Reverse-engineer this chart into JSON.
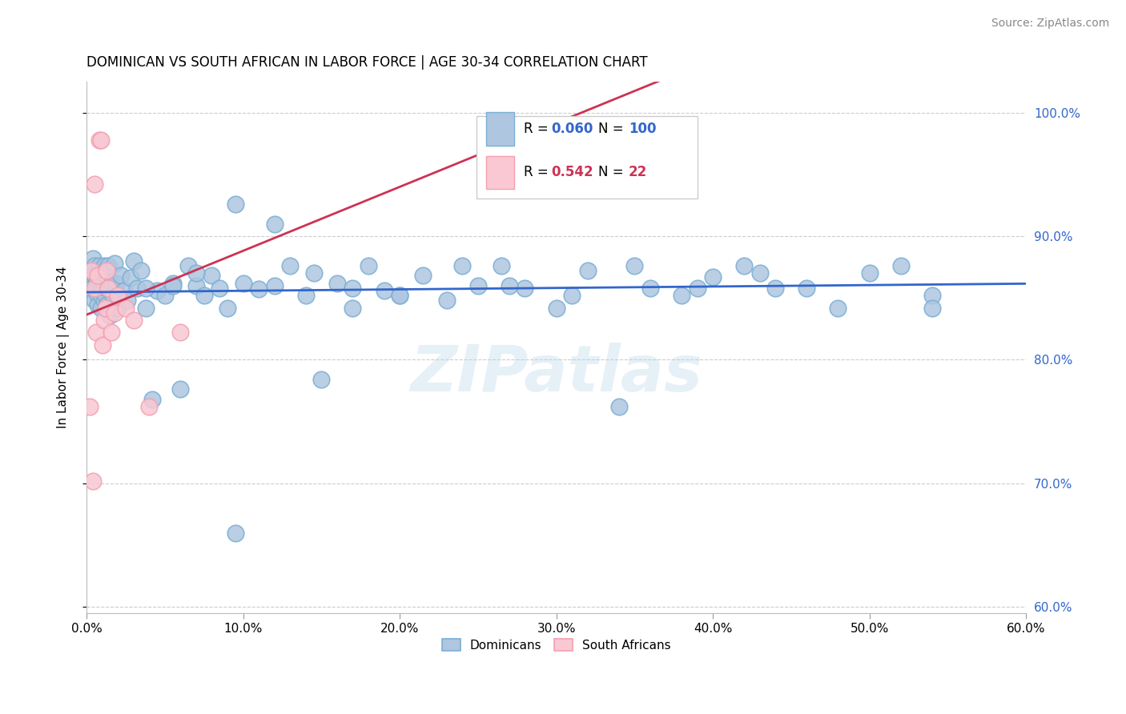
{
  "title": "DOMINICAN VS SOUTH AFRICAN IN LABOR FORCE | AGE 30-34 CORRELATION CHART",
  "source": "Source: ZipAtlas.com",
  "ylabel": "In Labor Force | Age 30-34",
  "xlim": [
    0.0,
    0.6
  ],
  "ylim": [
    0.595,
    1.025
  ],
  "yticks": [
    0.6,
    0.7,
    0.8,
    0.9,
    1.0
  ],
  "ytick_labels": [
    "60.0%",
    "70.0%",
    "80.0%",
    "90.0%",
    "100.0%"
  ],
  "xticks": [
    0.0,
    0.1,
    0.2,
    0.3,
    0.4,
    0.5,
    0.6
  ],
  "xtick_labels": [
    "0.0%",
    "10.0%",
    "20.0%",
    "30.0%",
    "40.0%",
    "50.0%",
    "60.0%"
  ],
  "dominican_R": 0.06,
  "dominican_N": 100,
  "south_african_R": 0.542,
  "south_african_N": 22,
  "blue_fill": "#AEC6E0",
  "blue_edge": "#7BAFD4",
  "pink_fill": "#F9C8D3",
  "pink_edge": "#F4A0B0",
  "blue_line_color": "#3366CC",
  "pink_line_color": "#CC3355",
  "legend_R_blue": "0.060",
  "legend_N_blue": "100",
  "legend_R_pink": "0.542",
  "legend_N_pink": "22",
  "watermark": "ZIPatlas",
  "background_color": "#FFFFFF",
  "grid_color": "#CCCCCC",
  "dominican_x": [
    0.003,
    0.004,
    0.004,
    0.005,
    0.005,
    0.005,
    0.006,
    0.006,
    0.007,
    0.007,
    0.007,
    0.008,
    0.008,
    0.008,
    0.009,
    0.009,
    0.009,
    0.01,
    0.01,
    0.01,
    0.011,
    0.011,
    0.011,
    0.012,
    0.012,
    0.013,
    0.013,
    0.014,
    0.014,
    0.015,
    0.015,
    0.016,
    0.017,
    0.018,
    0.019,
    0.02,
    0.022,
    0.024,
    0.026,
    0.028,
    0.03,
    0.032,
    0.035,
    0.038,
    0.042,
    0.045,
    0.05,
    0.055,
    0.06,
    0.065,
    0.07,
    0.075,
    0.08,
    0.085,
    0.09,
    0.095,
    0.1,
    0.11,
    0.12,
    0.13,
    0.14,
    0.15,
    0.16,
    0.17,
    0.18,
    0.19,
    0.2,
    0.215,
    0.23,
    0.25,
    0.265,
    0.28,
    0.3,
    0.32,
    0.34,
    0.36,
    0.38,
    0.4,
    0.42,
    0.44,
    0.46,
    0.48,
    0.5,
    0.52,
    0.54,
    0.038,
    0.055,
    0.07,
    0.095,
    0.12,
    0.145,
    0.17,
    0.2,
    0.24,
    0.27,
    0.31,
    0.35,
    0.39,
    0.43,
    0.54
  ],
  "dominican_y": [
    0.858,
    0.872,
    0.882,
    0.868,
    0.848,
    0.876,
    0.862,
    0.856,
    0.872,
    0.852,
    0.844,
    0.862,
    0.876,
    0.866,
    0.858,
    0.852,
    0.842,
    0.872,
    0.86,
    0.858,
    0.848,
    0.876,
    0.862,
    0.852,
    0.872,
    0.858,
    0.844,
    0.866,
    0.876,
    0.858,
    0.836,
    0.862,
    0.852,
    0.878,
    0.862,
    0.842,
    0.868,
    0.856,
    0.848,
    0.866,
    0.88,
    0.858,
    0.872,
    0.842,
    0.768,
    0.856,
    0.852,
    0.862,
    0.776,
    0.876,
    0.86,
    0.852,
    0.868,
    0.858,
    0.842,
    0.926,
    0.862,
    0.857,
    0.91,
    0.876,
    0.852,
    0.784,
    0.862,
    0.842,
    0.876,
    0.856,
    0.852,
    0.868,
    0.848,
    0.86,
    0.876,
    0.858,
    0.842,
    0.872,
    0.762,
    0.858,
    0.852,
    0.867,
    0.876,
    0.858,
    0.858,
    0.842,
    0.87,
    0.876,
    0.852,
    0.858,
    0.86,
    0.87,
    0.66,
    0.86,
    0.87,
    0.858,
    0.852,
    0.876,
    0.86,
    0.852,
    0.876,
    0.858,
    0.87,
    0.842
  ],
  "southafrican_x": [
    0.002,
    0.003,
    0.004,
    0.005,
    0.005,
    0.006,
    0.007,
    0.008,
    0.009,
    0.01,
    0.011,
    0.012,
    0.013,
    0.014,
    0.016,
    0.018,
    0.02,
    0.025,
    0.03,
    0.04,
    0.06,
    0.35
  ],
  "southafrican_y": [
    0.762,
    0.872,
    0.702,
    0.858,
    0.942,
    0.822,
    0.868,
    0.978,
    0.978,
    0.812,
    0.832,
    0.842,
    0.872,
    0.858,
    0.822,
    0.838,
    0.852,
    0.842,
    0.832,
    0.762,
    0.822,
    0.978
  ]
}
